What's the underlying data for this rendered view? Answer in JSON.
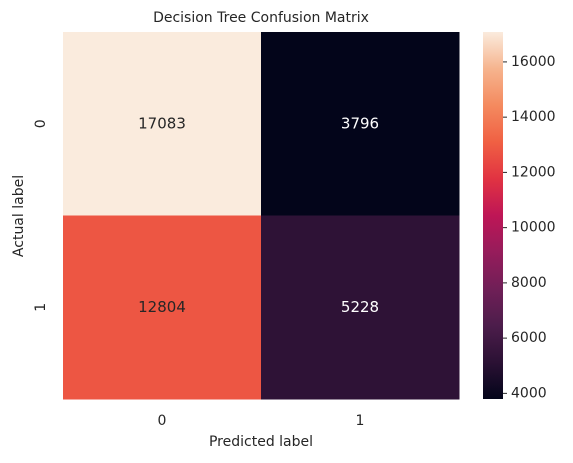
{
  "chart_data": {
    "type": "heatmap",
    "title": "Decision Tree Confusion Matrix",
    "x_label": "Predicted label",
    "y_label": "Actual label",
    "x_categories": [
      "0",
      "1"
    ],
    "y_categories": [
      "0",
      "1"
    ],
    "values": [
      [
        17083,
        3796
      ],
      [
        12804,
        5228
      ]
    ],
    "colormap": [
      "#03051a",
      "#2b1134",
      "#4c1d4b",
      "#701f57",
      "#961c5b",
      "#be1656",
      "#e13342",
      "#f06043",
      "#f48a5f",
      "#f6b48e",
      "#faebdd"
    ],
    "clim": [
      3796,
      17083
    ],
    "cticks": [
      4000,
      6000,
      8000,
      10000,
      12000,
      14000,
      16000
    ]
  }
}
